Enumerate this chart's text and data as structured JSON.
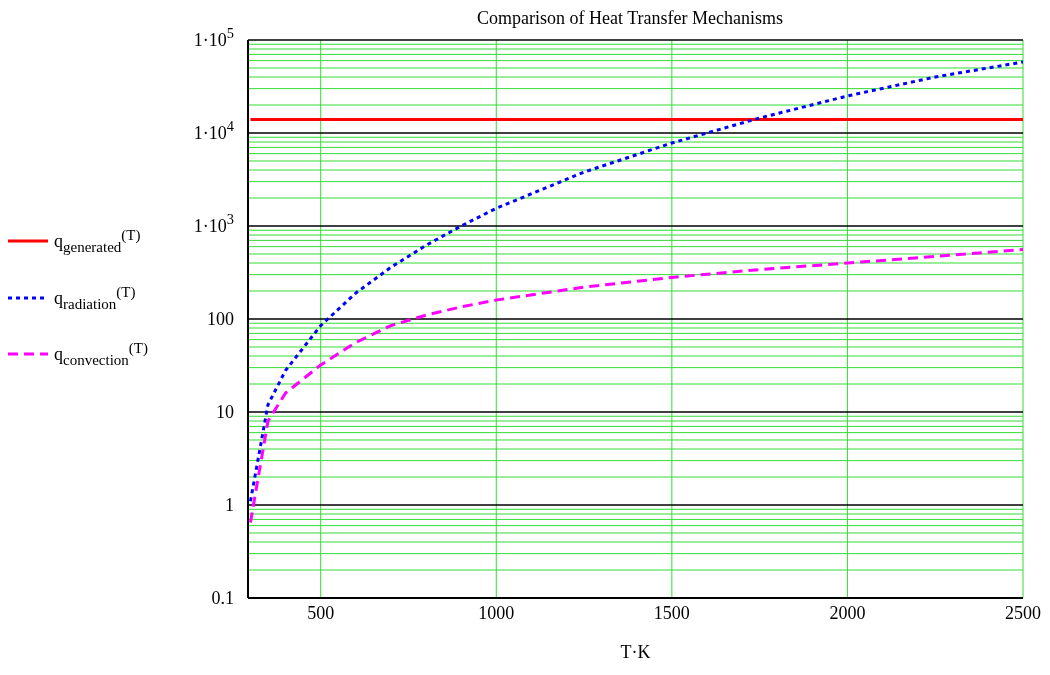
{
  "chart_data": {
    "type": "line",
    "title": "Comparison of Heat Transfer Mechanisms",
    "xlabel": "T·K",
    "x": [
      300,
      350,
      400,
      500,
      600,
      700,
      800,
      900,
      1000,
      1250,
      1500,
      1750,
      2000,
      2250,
      2500
    ],
    "series": [
      {
        "name": "q$_{generated}$$^{(T)}$",
        "color": "#ff0000",
        "line_style": "solid",
        "values": [
          14000,
          14000,
          14000,
          14000,
          14000,
          14000,
          14000,
          14000,
          14000,
          14000,
          14000,
          14000,
          14000,
          14000,
          14000
        ]
      },
      {
        "name": "q$_{radiation}$$^{(T)}$",
        "color": "#0000ff",
        "line_style": "dotted",
        "values": [
          1.1,
          12,
          28,
          85,
          190,
          360,
          620,
          1000,
          1550,
          3800,
          7800,
          14500,
          25000,
          40000,
          58000
        ]
      },
      {
        "name": "q$_{convection}$$^{(T)}$",
        "color": "#ff00ff",
        "line_style": "dashed",
        "values": [
          0.65,
          8,
          16,
          32,
          56,
          85,
          110,
          135,
          160,
          220,
          280,
          340,
          400,
          470,
          560
        ]
      }
    ],
    "xlim": [
      293,
      2500
    ],
    "xticks": [
      500,
      1000,
      1500,
      2000,
      2500
    ],
    "ylim": [
      0.1,
      100000
    ],
    "log": "y",
    "yticks": [
      0.1,
      1,
      10,
      100,
      {
        "value": 1000,
        "label": "1·10$^{3}$"
      },
      {
        "value": 10000,
        "label": "1·10$^{4}$"
      },
      {
        "value": 100000,
        "label": "1·10$^{5}$"
      }
    ],
    "grid": true,
    "legend": "left",
    "marker": "none"
  }
}
